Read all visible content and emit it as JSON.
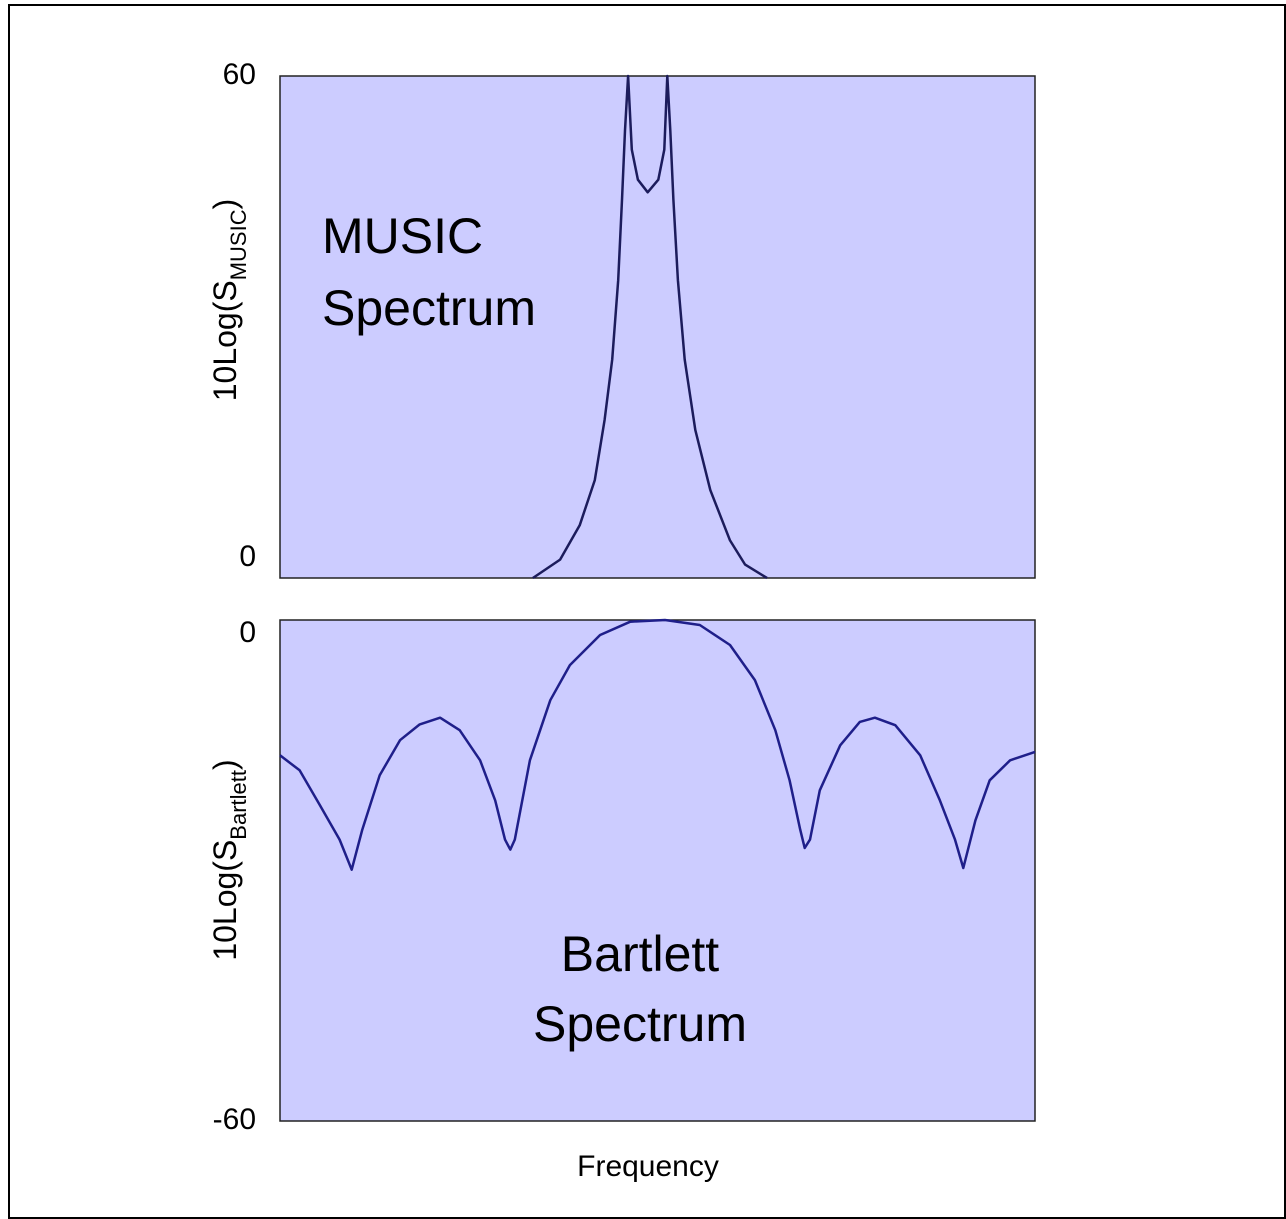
{
  "chart_data": [
    {
      "type": "line",
      "ylim": [
        0,
        60
      ],
      "yticks": [
        0,
        60
      ],
      "xlim": [
        0,
        100
      ],
      "ylabel_parts": [
        "10Log(S",
        "MUSIC",
        ")"
      ],
      "annotation": [
        "MUSIC",
        "Spectrum"
      ],
      "color": "#1c1c5c",
      "x": [
        33.5,
        37.1,
        39.7,
        41.7,
        43.0,
        44.0,
        44.8,
        45.3,
        45.7,
        46.1,
        46.6,
        47.4,
        48.7,
        50.1,
        50.9,
        51.3,
        51.7,
        52.1,
        52.7,
        53.6,
        55.0,
        57.0,
        59.6,
        61.6,
        64.5
      ],
      "values": [
        0,
        2.2,
        6.3,
        11.7,
        18.9,
        26.1,
        35.6,
        45.2,
        53.5,
        60,
        51.2,
        47.6,
        46.1,
        47.6,
        51.2,
        60,
        53.5,
        45.2,
        35.6,
        26.1,
        17.7,
        10.5,
        4.5,
        1.6,
        0
      ]
    },
    {
      "type": "line",
      "ylim": [
        -60,
        0
      ],
      "yticks": [
        -60,
        0
      ],
      "xlim": [
        0,
        100
      ],
      "ylabel_parts": [
        "10Log(S",
        "Bartlett",
        ")"
      ],
      "annotation": [
        "Bartlett",
        "Spectrum"
      ],
      "xlabel": "Frequency",
      "color": "#1f1f8a",
      "x": [
        0,
        2.6,
        5.3,
        7.9,
        9.5,
        10.9,
        13.2,
        15.9,
        18.5,
        21.2,
        23.8,
        26.5,
        28.5,
        29.8,
        30.5,
        31.1,
        33.1,
        35.8,
        38.4,
        42.4,
        46.4,
        51.0,
        55.6,
        59.6,
        62.9,
        65.6,
        67.5,
        68.9,
        69.5,
        70.2,
        71.5,
        74.2,
        76.8,
        78.8,
        81.5,
        84.8,
        87.4,
        89.4,
        90.5,
        92.1,
        94.0,
        96.7,
        100
      ],
      "values": [
        -16.2,
        -18.0,
        -22.2,
        -26.3,
        -29.9,
        -25.1,
        -18.6,
        -14.4,
        -12.5,
        -11.7,
        -13.2,
        -16.8,
        -21.6,
        -26.3,
        -27.5,
        -26.3,
        -16.8,
        -9.6,
        -5.4,
        -1.8,
        -0.2,
        0,
        -0.6,
        -3.0,
        -7.2,
        -13.2,
        -19.2,
        -25.1,
        -27.3,
        -26.3,
        -20.4,
        -15.0,
        -12.2,
        -11.7,
        -12.6,
        -16.2,
        -21.6,
        -26.3,
        -29.7,
        -24.0,
        -19.2,
        -16.8,
        -15.8
      ]
    }
  ]
}
